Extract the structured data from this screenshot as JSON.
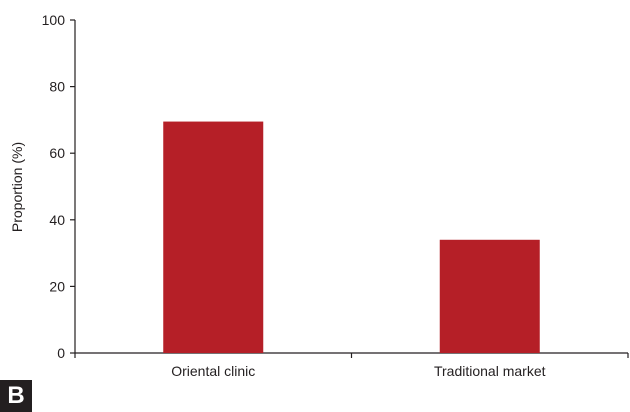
{
  "panel_label": "B",
  "colors": {
    "bar": "#b51f27",
    "axis": "#231f20"
  },
  "chart_data": {
    "type": "bar",
    "categories": [
      "Oriental clinic",
      "Traditional market"
    ],
    "values": [
      69.5,
      34
    ],
    "xlabel": "",
    "ylabel": "Proportion (%)",
    "ylim": [
      0,
      100
    ],
    "yticks": [
      0,
      20,
      40,
      60,
      80,
      100
    ],
    "grid": false,
    "legend": "none"
  }
}
